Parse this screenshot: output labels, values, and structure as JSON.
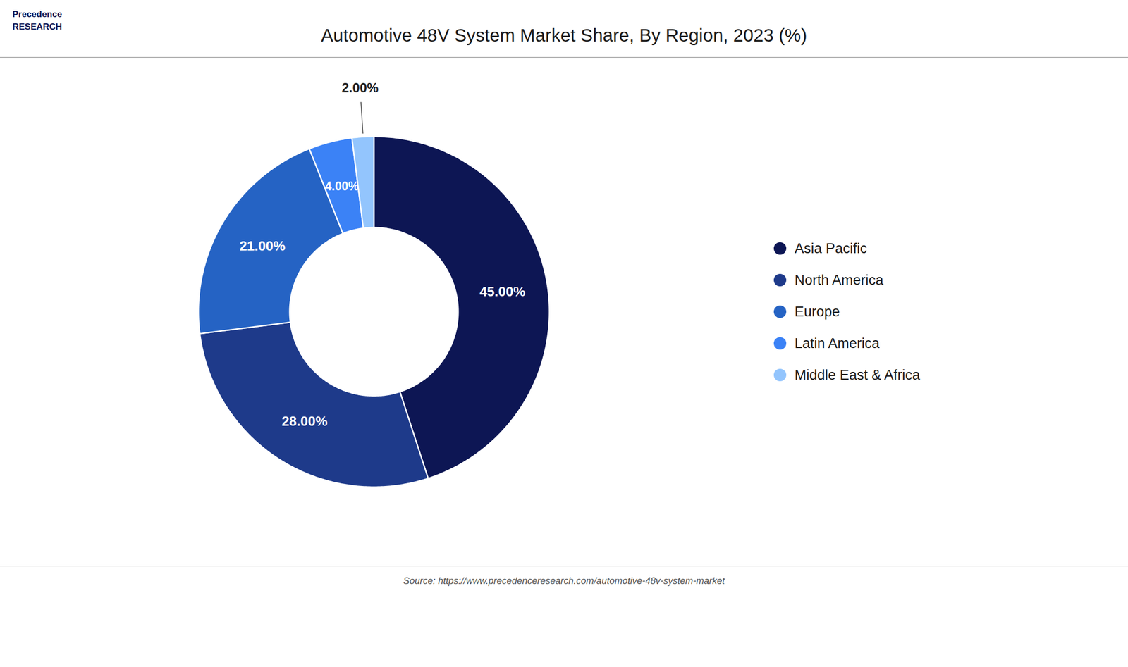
{
  "chart_data": {
    "type": "donut",
    "title": "Automotive 48V System Market Share, By Region, 2023 (%)",
    "categories": [
      "Asia Pacific",
      "North America",
      "Europe",
      "Latin America",
      "Middle East & Africa"
    ],
    "values": [
      45.0,
      28.0,
      21.0,
      4.0,
      2.0
    ],
    "value_labels": [
      "45.00%",
      "28.00%",
      "21.00%",
      "4.00%",
      "2.00%"
    ],
    "data_labels": true,
    "colors": [
      "#0d1654",
      "#1e3a8a",
      "#2563c4",
      "#3b82f6",
      "#93c5fd"
    ],
    "legend": "right",
    "source": "Source: https://www.precedenceresearch.com/automotive-48v-system-market",
    "annotations": [
      "Precedence\nRESEARCH"
    ]
  }
}
